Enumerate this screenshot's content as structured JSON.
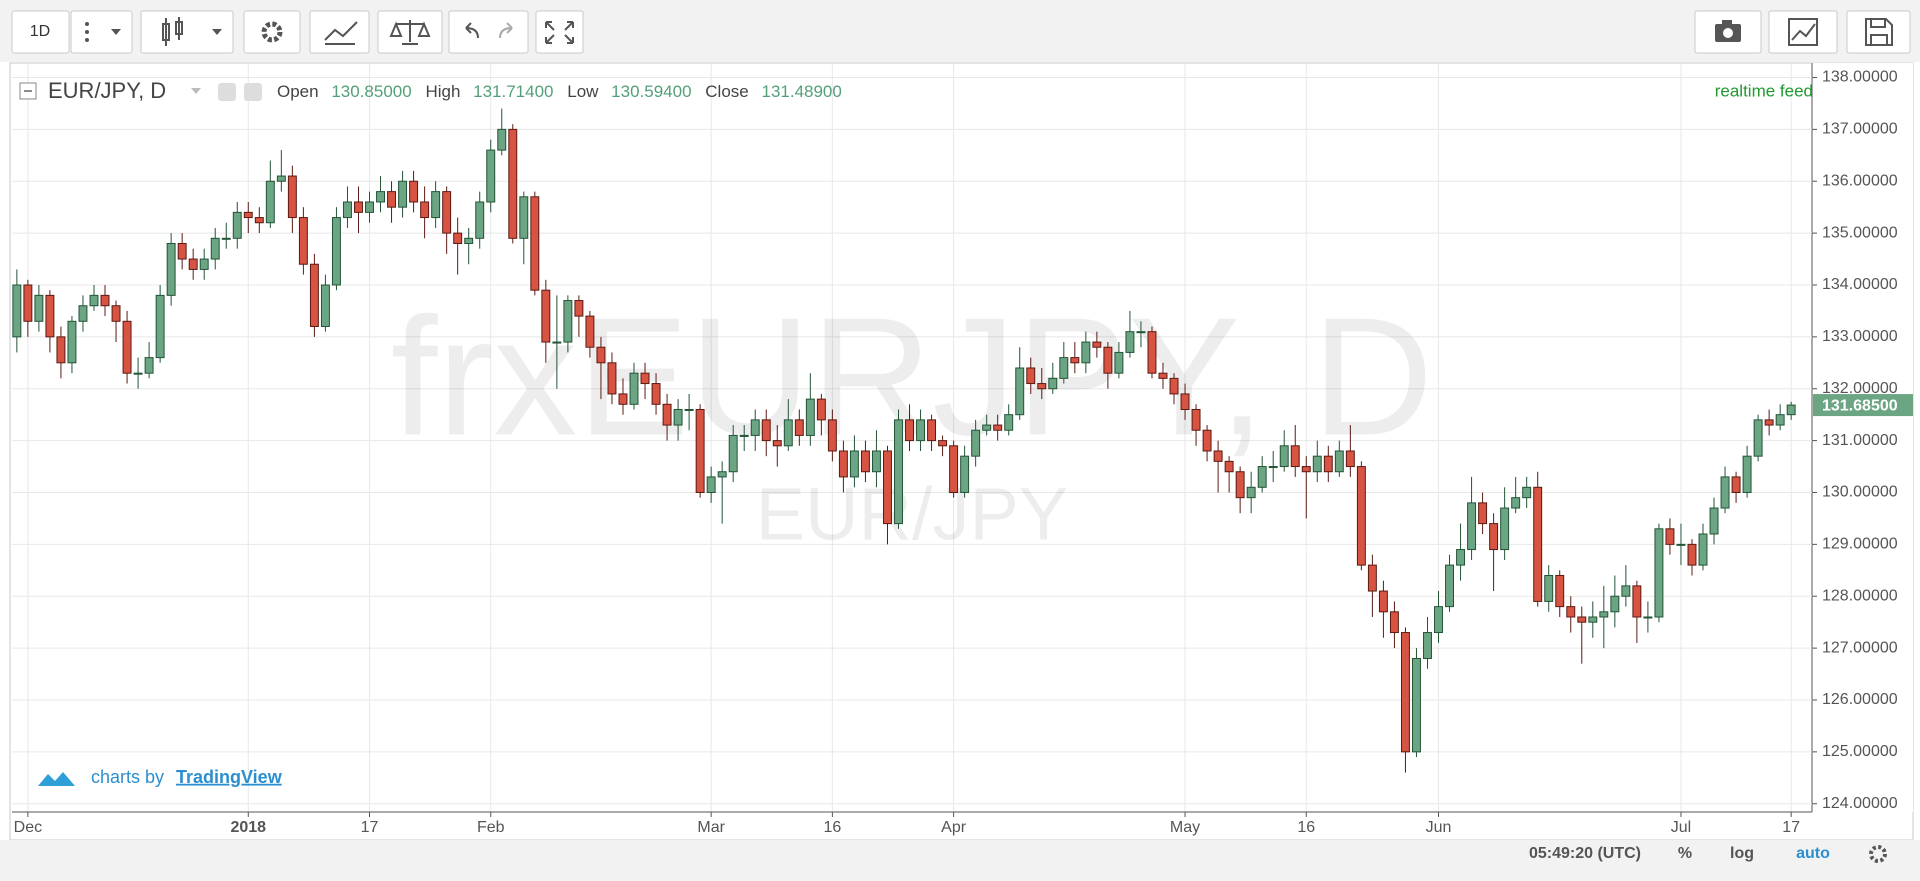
{
  "toolbar": {
    "interval": "1D"
  },
  "chart_data": {
    "type": "candlestick",
    "title": "EUR/JPY, D",
    "legend": {
      "open_label": "Open",
      "open": "130.85000",
      "high_label": "High",
      "high": "131.71400",
      "low_label": "Low",
      "low": "130.59400",
      "close_label": "Close",
      "close": "131.48900"
    },
    "watermark": "frxEURJPY, D",
    "watermark_symbol": "EUR/JPY",
    "feed_label": "realtime feed",
    "up_color": "#6ba583",
    "down_color": "#d75442",
    "grid": true,
    "open": [
      133.0,
      134.0,
      133.3,
      133.8,
      133.0,
      132.5,
      133.3,
      133.6,
      133.8,
      133.6,
      133.3,
      132.3,
      132.3,
      132.6,
      133.8,
      134.8,
      134.5,
      134.3,
      134.5,
      134.9,
      134.9,
      135.4,
      135.3,
      135.2,
      136.0,
      136.1,
      135.3,
      134.4,
      133.2,
      134.0,
      135.3,
      135.6,
      135.4,
      135.6,
      135.8,
      135.5,
      136.0,
      135.6,
      135.3,
      135.8,
      135.0,
      134.8,
      134.9,
      135.6,
      136.6,
      137.0,
      134.9,
      135.7,
      133.9,
      132.9,
      132.9,
      133.7,
      133.4,
      132.8,
      132.5,
      131.9,
      131.7,
      132.3,
      132.1,
      131.7,
      131.3,
      131.6,
      131.6,
      130.0,
      130.3,
      130.4,
      131.1,
      131.1,
      131.4,
      131.0,
      130.9,
      131.4,
      131.1,
      131.8,
      131.4,
      130.8,
      130.3,
      130.8,
      130.4,
      130.8,
      129.4,
      131.4,
      131.0,
      131.4,
      131.0,
      130.9,
      130.0,
      130.7,
      131.2,
      131.3,
      131.2,
      131.5,
      132.4,
      132.1,
      132.0,
      132.2,
      132.6,
      132.5,
      132.9,
      132.8,
      132.3,
      132.7,
      133.1,
      133.1,
      132.3,
      132.2,
      131.9,
      131.6,
      131.2,
      130.8,
      130.6,
      130.4,
      129.9,
      130.1,
      130.5,
      130.5,
      130.9,
      130.5,
      130.4,
      130.7,
      130.4,
      130.8,
      130.5,
      128.6,
      128.1,
      127.7,
      127.3,
      125.0,
      126.8,
      127.3,
      127.8,
      128.6,
      128.9,
      129.8,
      129.4,
      128.9,
      129.7,
      129.9,
      130.1,
      127.9,
      128.4,
      127.8,
      127.6,
      127.5,
      127.6,
      127.7,
      128.0,
      128.2,
      127.6,
      127.6,
      129.3,
      129.0,
      129.0,
      128.6,
      129.2,
      129.7,
      130.3,
      130.0,
      130.7,
      131.4,
      131.3,
      131.5
    ],
    "high": [
      134.3,
      134.1,
      134.0,
      133.9,
      133.2,
      133.4,
      133.8,
      134.0,
      134.0,
      133.7,
      133.5,
      132.6,
      132.9,
      134.0,
      135.0,
      135.0,
      134.7,
      134.7,
      135.1,
      135.2,
      135.6,
      135.6,
      135.5,
      136.4,
      136.6,
      136.3,
      135.5,
      134.6,
      134.2,
      135.5,
      135.9,
      135.9,
      135.8,
      136.1,
      136.0,
      136.2,
      136.2,
      135.9,
      136.0,
      135.9,
      135.3,
      135.1,
      135.8,
      136.8,
      137.4,
      137.1,
      135.8,
      135.8,
      134.1,
      133.8,
      133.8,
      133.8,
      133.5,
      133.0,
      132.7,
      132.2,
      132.5,
      132.5,
      132.3,
      131.9,
      131.8,
      131.9,
      131.7,
      130.5,
      130.6,
      131.3,
      131.3,
      131.6,
      131.6,
      131.3,
      131.8,
      131.6,
      132.3,
      131.9,
      131.6,
      131.0,
      131.1,
      131.0,
      131.2,
      130.9,
      131.6,
      131.7,
      131.6,
      131.5,
      131.1,
      131.0,
      130.9,
      131.4,
      131.5,
      131.5,
      131.7,
      132.8,
      132.6,
      132.4,
      132.5,
      132.9,
      132.9,
      133.1,
      133.1,
      132.9,
      132.9,
      133.5,
      133.3,
      133.2,
      132.5,
      132.3,
      132.1,
      131.7,
      131.3,
      131.0,
      130.7,
      130.5,
      130.4,
      130.7,
      130.8,
      131.2,
      131.3,
      130.7,
      131.0,
      130.9,
      131.0,
      131.3,
      130.6,
      128.8,
      128.3,
      127.9,
      127.4,
      127.0,
      127.6,
      128.1,
      128.8,
      129.4,
      130.3,
      130.0,
      129.6,
      130.1,
      130.3,
      130.3,
      130.4,
      128.6,
      128.5,
      128.0,
      127.8,
      127.9,
      128.2,
      128.4,
      128.6,
      128.3,
      127.9,
      129.4,
      129.5,
      129.4,
      129.1,
      129.4,
      129.9,
      130.5,
      130.4,
      130.9,
      131.5,
      131.6,
      131.7,
      131.75
    ],
    "low": [
      132.7,
      133.0,
      133.1,
      132.7,
      132.2,
      132.3,
      133.1,
      133.5,
      133.4,
      132.9,
      132.1,
      132.0,
      132.2,
      132.5,
      133.6,
      134.3,
      134.1,
      134.1,
      134.3,
      134.7,
      134.7,
      135.0,
      135.0,
      135.1,
      135.8,
      135.0,
      134.2,
      133.0,
      133.1,
      133.9,
      135.1,
      135.0,
      135.2,
      135.4,
      135.2,
      135.3,
      135.4,
      134.9,
      135.1,
      134.6,
      134.2,
      134.4,
      134.7,
      135.4,
      136.5,
      134.8,
      134.4,
      133.8,
      132.5,
      132.0,
      132.7,
      133.0,
      132.6,
      131.8,
      131.7,
      131.5,
      131.6,
      131.8,
      131.5,
      131.0,
      131.0,
      131.2,
      129.9,
      129.8,
      129.4,
      130.2,
      130.8,
      130.8,
      130.7,
      130.5,
      130.8,
      130.9,
      130.9,
      131.1,
      130.6,
      130.0,
      130.1,
      130.2,
      130.1,
      129.0,
      129.3,
      130.8,
      130.8,
      130.8,
      130.7,
      129.9,
      129.9,
      130.5,
      131.1,
      131.0,
      131.1,
      131.4,
      131.9,
      131.8,
      131.9,
      132.1,
      132.3,
      132.3,
      132.6,
      132.0,
      132.2,
      132.6,
      132.8,
      132.2,
      132.0,
      131.7,
      131.4,
      130.9,
      130.6,
      130.0,
      130.0,
      129.6,
      129.6,
      130.0,
      130.2,
      130.4,
      130.3,
      129.5,
      130.2,
      130.2,
      130.3,
      130.3,
      128.5,
      127.6,
      127.2,
      127.0,
      124.6,
      124.9,
      126.6,
      127.1,
      127.7,
      128.3,
      128.7,
      129.2,
      128.1,
      128.7,
      129.6,
      129.7,
      127.8,
      127.7,
      127.6,
      127.3,
      126.7,
      127.2,
      127.0,
      127.4,
      127.8,
      127.1,
      127.3,
      127.5,
      128.8,
      128.6,
      128.4,
      128.5,
      129.0,
      129.6,
      129.8,
      129.9,
      130.6,
      131.1,
      131.2,
      131.4
    ],
    "close": [
      134.0,
      133.3,
      133.8,
      133.0,
      132.5,
      133.3,
      133.6,
      133.8,
      133.6,
      133.3,
      132.3,
      132.3,
      132.6,
      133.8,
      134.8,
      134.5,
      134.3,
      134.5,
      134.9,
      134.9,
      135.4,
      135.3,
      135.2,
      136.0,
      136.1,
      135.3,
      134.4,
      133.2,
      134.0,
      135.3,
      135.6,
      135.4,
      135.6,
      135.8,
      135.5,
      136.0,
      135.6,
      135.3,
      135.8,
      135.0,
      134.8,
      134.9,
      135.6,
      136.6,
      137.0,
      134.9,
      135.7,
      133.9,
      132.9,
      132.9,
      133.7,
      133.4,
      132.8,
      132.5,
      131.9,
      131.7,
      132.3,
      132.1,
      131.7,
      131.3,
      131.6,
      131.6,
      130.0,
      130.3,
      130.4,
      131.1,
      131.1,
      131.4,
      131.0,
      130.9,
      131.4,
      131.1,
      131.8,
      131.4,
      130.8,
      130.3,
      130.8,
      130.4,
      130.8,
      129.4,
      131.4,
      131.0,
      131.4,
      131.0,
      130.9,
      130.0,
      130.7,
      131.2,
      131.3,
      131.2,
      131.5,
      132.4,
      132.1,
      132.0,
      132.2,
      132.6,
      132.5,
      132.9,
      132.8,
      132.3,
      132.7,
      133.1,
      133.1,
      132.3,
      132.2,
      131.9,
      131.6,
      131.2,
      130.8,
      130.6,
      130.4,
      129.9,
      130.1,
      130.5,
      130.5,
      130.9,
      130.5,
      130.4,
      130.7,
      130.4,
      130.8,
      130.5,
      128.6,
      128.1,
      127.7,
      127.3,
      125.0,
      126.8,
      127.3,
      127.8,
      128.6,
      128.9,
      129.8,
      129.4,
      128.9,
      129.7,
      129.9,
      130.1,
      127.9,
      128.4,
      127.8,
      127.6,
      127.5,
      127.6,
      127.7,
      128.0,
      128.2,
      127.6,
      127.6,
      129.3,
      129.0,
      129.0,
      128.6,
      129.2,
      129.7,
      130.3,
      130.0,
      130.7,
      131.4,
      131.3,
      131.5,
      131.685
    ],
    "xlim": [
      -0.44,
      162.89
    ],
    "xticks": [
      {
        "value": 1,
        "label": "Dec"
      },
      {
        "value": 21,
        "label": "2018"
      },
      {
        "value": 32,
        "label": "17"
      },
      {
        "value": 43,
        "label": "Feb"
      },
      {
        "value": 63,
        "label": "Mar"
      },
      {
        "value": 74,
        "label": "16"
      },
      {
        "value": 85,
        "label": "Apr"
      },
      {
        "value": 106,
        "label": "May"
      },
      {
        "value": 117,
        "label": "16"
      },
      {
        "value": 129,
        "label": "Jun"
      },
      {
        "value": 151,
        "label": "Jul"
      },
      {
        "value": 161,
        "label": "17"
      }
    ],
    "ylim": [
      123.86,
      138.26
    ],
    "yticks": [
      {
        "value": 124,
        "label": "124.00000"
      },
      {
        "value": 125,
        "label": "125.00000"
      },
      {
        "value": 126,
        "label": "126.00000"
      },
      {
        "value": 127,
        "label": "127.00000"
      },
      {
        "value": 128,
        "label": "128.00000"
      },
      {
        "value": 129,
        "label": "129.00000"
      },
      {
        "value": 130,
        "label": "130.00000"
      },
      {
        "value": 131,
        "label": "131.00000"
      },
      {
        "value": 132,
        "label": "132.00000"
      },
      {
        "value": 133,
        "label": "133.00000"
      },
      {
        "value": 134,
        "label": "134.00000"
      },
      {
        "value": 135,
        "label": "135.00000"
      },
      {
        "value": 136,
        "label": "136.00000"
      },
      {
        "value": 137,
        "label": "137.00000"
      },
      {
        "value": 138,
        "label": "138.00000"
      }
    ],
    "last_price": {
      "value": 131.685,
      "label": "131.68500"
    },
    "last_price_color": "#6ba583"
  },
  "branding": {
    "prefix": "charts by",
    "name": "TradingView"
  },
  "status_bar": {
    "time": "05:49:20 (UTC)",
    "percent": "%",
    "log": "log",
    "auto": "auto"
  }
}
